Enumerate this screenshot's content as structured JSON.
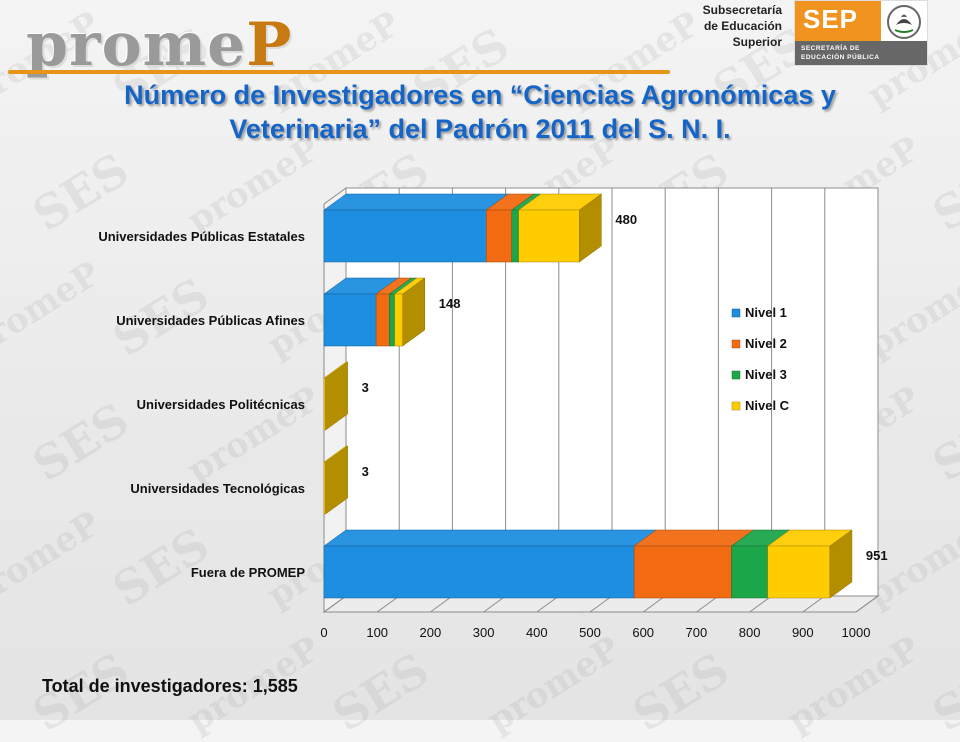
{
  "header": {
    "logo_text_a": "prome",
    "logo_text_b": "P",
    "subsecretaria": [
      "Subsecretaría",
      "de Educación",
      "Superior"
    ],
    "sep_label": "SEP",
    "sep_subtitle": [
      "SECRETARÍA DE",
      "EDUCACIÓN PÚBLICA"
    ]
  },
  "title_line1": "Número de Investigadores en “Ciencias Agronómicas y",
  "title_line2": "Veterinaria” del Padrón 2011 del S. N. I.",
  "footer": {
    "total_text": "Total de investigadores: 1,585"
  },
  "colors": {
    "Nivel 1": "#1e8fe0",
    "Nivel 2": "#f26b12",
    "Nivel 3": "#1ca64a",
    "Nivel C": "#ffcc00"
  },
  "chart_data": {
    "type": "bar",
    "orientation": "horizontal",
    "stacked": true,
    "three_d": true,
    "categories": [
      "Universidades Públicas Estatales",
      "Universidades Públicas Afines",
      "Universidades Politécnicas",
      "Universidades Tecnológicas",
      "Fuera de PROMEP"
    ],
    "series": [
      {
        "name": "Nivel 1",
        "values": [
          305,
          98,
          0,
          0,
          583
        ]
      },
      {
        "name": "Nivel 2",
        "values": [
          48,
          25,
          0,
          0,
          183
        ]
      },
      {
        "name": "Nivel 3",
        "values": [
          13,
          10,
          0,
          0,
          68
        ]
      },
      {
        "name": "Nivel C",
        "values": [
          114,
          15,
          3,
          3,
          117
        ]
      }
    ],
    "totals": [
      480,
      148,
      3,
      3,
      951
    ],
    "xlim": [
      0,
      1000
    ],
    "xticks": [
      0,
      100,
      200,
      300,
      400,
      500,
      600,
      700,
      800,
      900,
      1000
    ],
    "grid": true,
    "legend_position": "right"
  }
}
